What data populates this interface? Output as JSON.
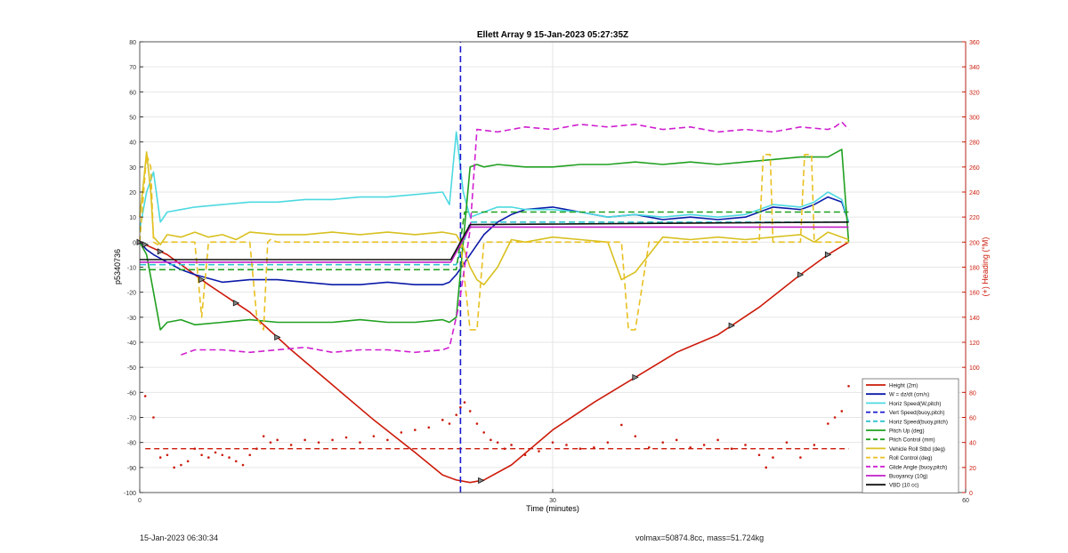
{
  "chart_data": {
    "type": "line",
    "title": "Ellett Array 9 15-Jan-2023 05:27:35Z",
    "xlabel": "Time (minutes)",
    "ylabel": "p5340736",
    "y2label": "(+) Heading (°M)",
    "xlim": [
      0,
      60
    ],
    "ylim": [
      -100,
      80
    ],
    "y2lim": [
      0,
      360
    ],
    "xticks": [
      "0",
      "30",
      "60"
    ],
    "yticks": [
      "80",
      "70",
      "60",
      "50",
      "40",
      "30",
      "20",
      "10",
      "0",
      "-10",
      "-20",
      "-30",
      "-40",
      "-50",
      "-60",
      "-70",
      "-80",
      "-90",
      "-100"
    ],
    "y2ticks": [
      "360",
      "340",
      "320",
      "300",
      "280",
      "260",
      "240",
      "220",
      "200",
      "180",
      "160",
      "140",
      "120",
      "100",
      "80",
      "60",
      "40",
      "20",
      "0"
    ],
    "grid": true,
    "legend_position": "bottom-right",
    "series": [
      {
        "name": "Height (2m)",
        "color": "#cc1a0a",
        "style": "solid",
        "x": [
          0,
          2,
          5,
          8,
          11,
          14,
          17,
          20,
          22,
          23,
          24,
          25,
          27,
          30,
          33,
          36,
          39,
          42,
          45,
          48,
          50,
          51.5
        ],
        "y": [
          0,
          -5,
          -17,
          -28,
          -43,
          -57,
          -71,
          -84,
          -93,
          -95,
          -96,
          -95,
          -89,
          -75,
          -64,
          -54,
          -44,
          -37,
          -26,
          -13,
          -5,
          0
        ]
      },
      {
        "name": "W = dz/dt (cm/s)",
        "color": "#0a1aa8",
        "style": "solid",
        "x": [
          0,
          0.5,
          1,
          2,
          3,
          4,
          6,
          8,
          10,
          12,
          14,
          16,
          18,
          20,
          22,
          22.5,
          23,
          24,
          25,
          26,
          27,
          28,
          30,
          32,
          34,
          36,
          38,
          40,
          42,
          44,
          46,
          48,
          49,
          50,
          51,
          51.5
        ],
        "y": [
          0,
          -3,
          -5,
          -8,
          -11,
          -13,
          -16,
          -15,
          -15,
          -16,
          -17,
          -17,
          -16,
          -17,
          -17,
          -16,
          -13,
          -5,
          3,
          8,
          11,
          13,
          14,
          12,
          10,
          11,
          9,
          10,
          9,
          10,
          14,
          13,
          15,
          18,
          16,
          8
        ]
      },
      {
        "name": "Horiz Speed(W,pitch)",
        "color": "#4dd9e0",
        "style": "solid",
        "x": [
          0,
          0.5,
          1,
          1.5,
          2,
          3,
          4,
          6,
          8,
          10,
          12,
          14,
          16,
          18,
          20,
          22,
          22.5,
          23,
          23.5,
          24,
          25,
          26,
          27,
          28,
          30,
          32,
          34,
          36,
          38,
          40,
          42,
          44,
          46,
          48,
          49,
          50,
          51,
          51.5
        ],
        "y": [
          5,
          20,
          28,
          8,
          12,
          13,
          14,
          15,
          16,
          16,
          17,
          17,
          18,
          18,
          19,
          20,
          15,
          44,
          20,
          10,
          12,
          14,
          14,
          13,
          13,
          12,
          10,
          11,
          10,
          11,
          10,
          11,
          15,
          14,
          16,
          20,
          17,
          8
        ]
      },
      {
        "name": "Vert Speed(buoy,pitch)",
        "color": "#1a1ad0",
        "style": "dashed",
        "x": [
          23.3,
          23.3
        ],
        "y": [
          -100,
          80
        ]
      },
      {
        "name": "Horiz Speed(buoy,pitch)",
        "color": "#2ec4d0",
        "style": "dashed",
        "x": [
          0,
          23,
          24,
          51.5
        ],
        "y": [
          -9,
          -9,
          8,
          8
        ]
      },
      {
        "name": "Pitch Up (deg)",
        "color": "#20a020",
        "style": "solid",
        "x": [
          0,
          0.5,
          1,
          1.5,
          2,
          3,
          4,
          6,
          8,
          10,
          12,
          14,
          16,
          18,
          20,
          22,
          22.5,
          23,
          23.5,
          24,
          24.5,
          25,
          26,
          28,
          30,
          32,
          34,
          36,
          38,
          40,
          42,
          44,
          46,
          48,
          50,
          51,
          51.5
        ],
        "y": [
          0,
          -5,
          -20,
          -35,
          -32,
          -31,
          -33,
          -32,
          -31,
          -32,
          -32,
          -32,
          -31,
          -32,
          -32,
          -31,
          -32,
          -30,
          0,
          30,
          31,
          30,
          31,
          30,
          30,
          31,
          31,
          32,
          31,
          32,
          31,
          32,
          33,
          34,
          34,
          37,
          0
        ]
      },
      {
        "name": "Pitch Control (mm)",
        "color": "#20a020",
        "style": "dashed",
        "x": [
          0,
          23,
          23.6,
          51.5
        ],
        "y": [
          -11,
          -11,
          12,
          12
        ]
      },
      {
        "name": "Vehicle Roll Stbd (deg)",
        "color": "#d8c020",
        "style": "solid",
        "x": [
          0,
          0.3,
          0.5,
          0.8,
          1,
          1.5,
          2,
          3,
          4,
          5,
          6,
          7,
          8,
          10,
          12,
          14,
          16,
          18,
          20,
          22,
          23,
          23.5,
          24,
          24.5,
          25,
          26,
          27,
          28,
          30,
          32,
          34,
          35,
          36,
          38,
          40,
          42,
          44,
          46,
          48,
          49,
          50,
          51,
          51.5
        ],
        "y": [
          10,
          25,
          36,
          20,
          2,
          -1,
          3,
          2,
          4,
          2,
          3,
          1,
          4,
          3,
          3,
          4,
          3,
          4,
          3,
          4,
          3,
          -2,
          -10,
          -15,
          -17,
          -10,
          1,
          0,
          2,
          1,
          0,
          -15,
          -12,
          2,
          1,
          2,
          1,
          2,
          3,
          0,
          4,
          2,
          1
        ]
      },
      {
        "name": "Roll Control (deg)",
        "color": "#e8c020",
        "style": "dashed",
        "x": [
          0,
          0.5,
          0.8,
          1,
          1.3,
          1.5,
          3,
          4,
          4.5,
          5,
          8,
          8.5,
          9,
          9.3,
          9.5,
          10,
          23,
          23.3,
          24,
          24.5,
          25,
          26,
          27,
          28,
          35,
          35.5,
          36,
          37,
          45,
          45.3,
          45.8,
          46,
          48,
          48.3,
          48.8,
          49,
          51,
          51.5
        ],
        "y": [
          0,
          35,
          30,
          0,
          -1,
          0,
          0,
          0,
          -30,
          0,
          0,
          -30,
          -35,
          0,
          1,
          0,
          0,
          0,
          -35,
          -35,
          0,
          0,
          0,
          0,
          0,
          -35,
          -35,
          0,
          0,
          35,
          35,
          0,
          0,
          35,
          35,
          0,
          0,
          0
        ]
      },
      {
        "name": "Glide Angle (buoy,pitch)",
        "color": "#d020d0",
        "style": "dashed",
        "x": [
          3,
          4,
          6,
          8,
          10,
          12,
          14,
          16,
          18,
          20,
          22,
          22.5,
          23.2,
          24,
          24.5,
          26,
          28,
          30,
          32,
          34,
          36,
          38,
          40,
          42,
          44,
          46,
          48,
          50,
          50.5,
          51,
          51.5
        ],
        "y": [
          -45,
          -43,
          -43,
          -44,
          -43,
          -42,
          -44,
          -43,
          -43,
          -44,
          -43,
          -42,
          -25,
          5,
          45,
          44,
          46,
          45,
          47,
          46,
          47,
          45,
          46,
          44,
          45,
          44,
          46,
          45,
          46,
          48,
          45
        ]
      },
      {
        "name": "Buoyancy (10g)",
        "color": "#c020c8",
        "style": "solid",
        "x": [
          0,
          22.6,
          24,
          51.5
        ],
        "y": [
          -8,
          -8,
          6,
          6
        ]
      },
      {
        "name": "VBD (10 cc)",
        "color": "#111111",
        "style": "solid",
        "x": [
          0,
          22.6,
          24,
          51.5
        ],
        "y": [
          -7,
          -7,
          7,
          8
        ]
      }
    ],
    "heading_scatter": {
      "name": "Heading (+)",
      "color": "#cc1a0a",
      "mean_line": 35,
      "x": [
        0.4,
        1,
        1.5,
        2,
        2.5,
        3,
        3.5,
        4,
        4.5,
        5,
        5.5,
        6,
        6.5,
        7,
        7.5,
        8,
        8.5,
        9,
        9.5,
        10,
        11,
        12,
        13,
        14,
        15,
        16,
        17,
        18,
        19,
        20,
        21,
        22,
        22.5,
        23,
        23.3,
        23.6,
        24,
        24.5,
        25,
        25.5,
        26,
        26.5,
        27,
        28,
        29,
        30,
        31,
        32,
        33,
        34,
        35,
        36,
        37,
        38,
        39,
        40,
        41,
        42,
        43,
        44,
        45,
        45.5,
        46,
        47,
        48,
        49,
        50,
        50.5,
        51,
        51.5
      ],
      "y": [
        77,
        60,
        28,
        30,
        20,
        22,
        25,
        35,
        30,
        28,
        32,
        30,
        28,
        25,
        22,
        30,
        35,
        45,
        40,
        42,
        38,
        42,
        40,
        42,
        44,
        40,
        45,
        42,
        48,
        50,
        52,
        58,
        55,
        62,
        68,
        72,
        65,
        55,
        48,
        42,
        40,
        35,
        38,
        30,
        33,
        40,
        38,
        35,
        36,
        40,
        54,
        45,
        36,
        40,
        42,
        36,
        38,
        42,
        35,
        38,
        30,
        20,
        28,
        40,
        28,
        38,
        55,
        60,
        65,
        85
      ]
    },
    "height_markers": [
      0,
      7,
      10,
      36,
      43,
      48,
      50,
      0.4,
      1.5,
      4.5,
      24.8
    ],
    "footer_left": "15-Jan-2023 06:30:34",
    "footer_right": "volmax=50874.8cc, mass=51.724kg"
  }
}
